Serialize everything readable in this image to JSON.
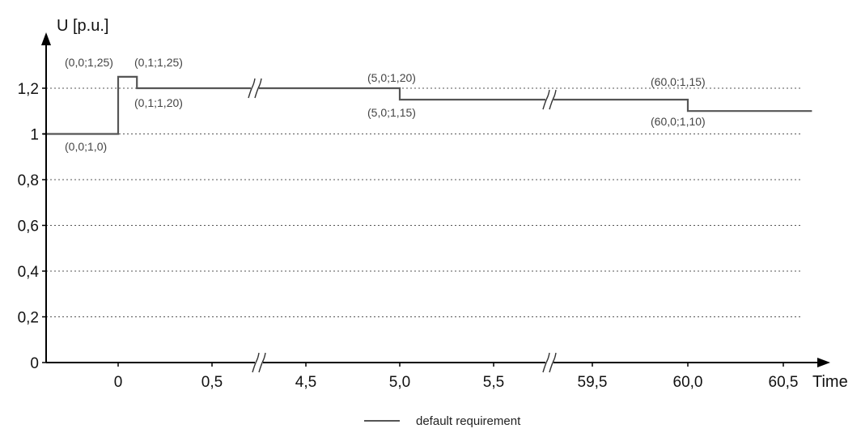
{
  "chart_data": {
    "type": "line",
    "ylabel": "U [p.u.]",
    "xlabel": "Time",
    "ylim": [
      0,
      1.3
    ],
    "y_ticks": [
      "0",
      "0,2",
      "0,4",
      "0,6",
      "0,8",
      "1",
      "1,2"
    ],
    "y_tick_values": [
      0,
      0.2,
      0.4,
      0.6,
      0.8,
      1.0,
      1.2
    ],
    "x_ticks": [
      "0",
      "0,5",
      "4,5",
      "5,0",
      "5,5",
      "59,5",
      "60,0",
      "60,5"
    ],
    "x_tick_values": [
      0,
      0.5,
      4.5,
      5.0,
      5.5,
      59.5,
      60.0,
      60.5
    ],
    "grid": "horizontal-dotted",
    "axis_breaks": [
      "between 0,5 and 4,5",
      "between 5,5 and 59,5"
    ],
    "legend": {
      "position": "bottom-center",
      "entries": [
        "default requirement"
      ]
    },
    "series": [
      {
        "name": "default requirement",
        "color": "#555555",
        "points": [
          {
            "x": -0.4,
            "y": 1.0
          },
          {
            "x": 0.0,
            "y": 1.0
          },
          {
            "x": 0.0,
            "y": 1.25
          },
          {
            "x": 0.1,
            "y": 1.25
          },
          {
            "x": 0.1,
            "y": 1.2
          },
          {
            "x": 5.0,
            "y": 1.2
          },
          {
            "x": 5.0,
            "y": 1.15
          },
          {
            "x": 60.0,
            "y": 1.15
          },
          {
            "x": 60.0,
            "y": 1.1
          },
          {
            "x": 60.65,
            "y": 1.1
          }
        ]
      }
    ],
    "annotations": [
      {
        "id": "p00-10",
        "text": "(0,0;1,0)"
      },
      {
        "id": "p00-125",
        "text": "(0,0;1,25)"
      },
      {
        "id": "p01-125",
        "text": "(0,1;1,25)"
      },
      {
        "id": "p01-120",
        "text": "(0,1;1,20)"
      },
      {
        "id": "p50-120",
        "text": "(5,0;1,20)"
      },
      {
        "id": "p50-115",
        "text": "(5,0;1,15)"
      },
      {
        "id": "p600-115",
        "text": "(60,0;1,15)"
      },
      {
        "id": "p600-110",
        "text": "(60,0;1,10)"
      }
    ]
  }
}
